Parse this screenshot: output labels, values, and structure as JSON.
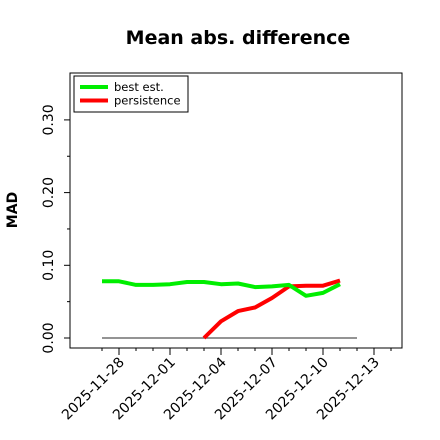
{
  "chart_data": {
    "type": "line",
    "title": "Mean abs. difference",
    "ylabel": "MAD",
    "xlabel": "",
    "x_tick_labels": [
      "2025-11-28",
      "2025-12-01",
      "2025-12-04",
      "2025-12-07",
      "2025-12-10",
      "2025-12-13"
    ],
    "y_tick_labels": [
      "0.00",
      "0.10",
      "0.20",
      "0.30"
    ],
    "y_ticks": [
      0.0,
      0.1,
      0.2,
      0.3
    ],
    "ylim": [
      -0.01,
      0.365
    ],
    "xlim": [
      "2025-11-27",
      "2025-12-14"
    ],
    "legend_position": "top-left",
    "baseline": {
      "x": [
        "2025-11-27",
        "2025-12-14"
      ],
      "y": 0,
      "color": "#555555"
    },
    "series": [
      {
        "name": "best est.",
        "color": "#00ee00",
        "x": [
          "2025-11-27",
          "2025-11-28",
          "2025-11-29",
          "2025-11-30",
          "2025-12-01",
          "2025-12-02",
          "2025-12-03",
          "2025-12-04",
          "2025-12-05",
          "2025-12-06",
          "2025-12-07",
          "2025-12-08",
          "2025-12-09",
          "2025-12-10",
          "2025-12-11"
        ],
        "y": [
          0.078,
          0.078,
          0.073,
          0.073,
          0.074,
          0.077,
          0.077,
          0.074,
          0.075,
          0.07,
          0.071,
          0.073,
          0.058,
          0.062,
          0.074
        ]
      },
      {
        "name": "persistence",
        "color": "#ff0000",
        "x": [
          "2025-12-03",
          "2025-12-04",
          "2025-12-05",
          "2025-12-06",
          "2025-12-07",
          "2025-12-08",
          "2025-12-09",
          "2025-12-10",
          "2025-12-11"
        ],
        "y": [
          0.0,
          0.023,
          0.037,
          0.042,
          0.055,
          0.071,
          0.072,
          0.072,
          0.079
        ]
      }
    ]
  }
}
